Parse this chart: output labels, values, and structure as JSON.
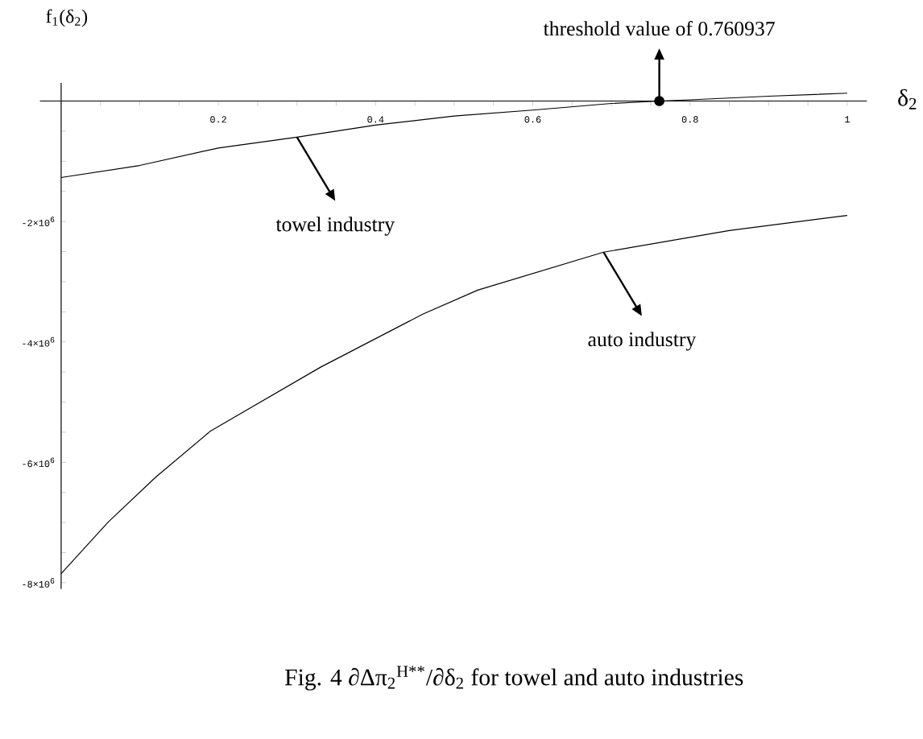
{
  "chart_data": {
    "type": "line",
    "xlabel": "δ$_{2}$",
    "ylabel": "f$_{1}$(δ$_{2}$)",
    "series": [
      {
        "color": "#000000",
        "x": [
          0,
          0.1,
          0.2,
          0.3,
          0.4,
          0.5,
          0.6,
          0.7,
          0.760937,
          0.8,
          0.9,
          1.0
        ],
        "values": [
          -1270000,
          -1070000,
          -780000,
          -600000,
          -400000,
          -250000,
          -150000,
          -40000,
          0,
          20000,
          80000,
          130000
        ]
      },
      {
        "color": "#000000",
        "x": [
          0,
          0.06,
          0.12,
          0.19,
          0.33,
          0.46,
          0.53,
          0.69,
          0.85,
          1.0
        ],
        "values": [
          -7850000,
          -6990000,
          -6250000,
          -5480000,
          -4420000,
          -3540000,
          -3140000,
          -2510000,
          -2150000,
          -1900000
        ]
      }
    ],
    "xlim": [
      -0.027,
      1.025
    ],
    "ylim": [
      -8100000,
      300000
    ],
    "xticks": [
      {
        "value": 0.05,
        "label": null
      },
      {
        "value": 0.1,
        "label": null
      },
      {
        "value": 0.15,
        "label": null
      },
      0.2,
      {
        "value": 0.25,
        "label": null
      },
      {
        "value": 0.3,
        "label": null
      },
      {
        "value": 0.35,
        "label": null
      },
      0.4,
      {
        "value": 0.45,
        "label": null
      },
      {
        "value": 0.5,
        "label": null
      },
      {
        "value": 0.55,
        "label": null
      },
      0.6,
      {
        "value": 0.65,
        "label": null
      },
      {
        "value": 0.7,
        "label": null
      },
      {
        "value": 0.75,
        "label": null
      },
      0.8,
      {
        "value": 0.85,
        "label": null
      },
      {
        "value": 0.9,
        "label": null
      },
      {
        "value": 0.95,
        "label": null
      },
      1
    ],
    "yticks": [
      {
        "value": -8000000,
        "label": "-8×10$^{6}$"
      },
      {
        "value": -7500000,
        "label": null
      },
      {
        "value": -7000000,
        "label": null
      },
      {
        "value": -6500000,
        "label": null
      },
      {
        "value": -6000000,
        "label": "-6×10$^{6}$"
      },
      {
        "value": -5500000,
        "label": null
      },
      {
        "value": -5000000,
        "label": null
      },
      {
        "value": -4500000,
        "label": null
      },
      {
        "value": -4000000,
        "label": "-4×10$^{6}$"
      },
      {
        "value": -3500000,
        "label": null
      },
      {
        "value": -3000000,
        "label": null
      },
      {
        "value": -2500000,
        "label": null
      },
      {
        "value": -2000000,
        "label": "-2×10$^{6}$"
      },
      {
        "value": -1500000,
        "label": null
      },
      {
        "value": -1000000,
        "label": null
      },
      {
        "value": -500000,
        "label": null
      }
    ],
    "grid": false,
    "legend": false,
    "marker": "none",
    "line_style": "solid",
    "annotations": [
      {
        "text": "threshold value of 0.760937",
        "x": 0.760937,
        "y": 0
      },
      {
        "text": "towel industry",
        "x": 0.3,
        "y": -600000
      },
      {
        "text": "auto industry",
        "x": 0.69,
        "y": -2510000
      },
      "Fig. 4  ∂Δπ$_{2}$$^{H**}$/∂δ$_{2}$  for towel and auto industries"
    ]
  }
}
